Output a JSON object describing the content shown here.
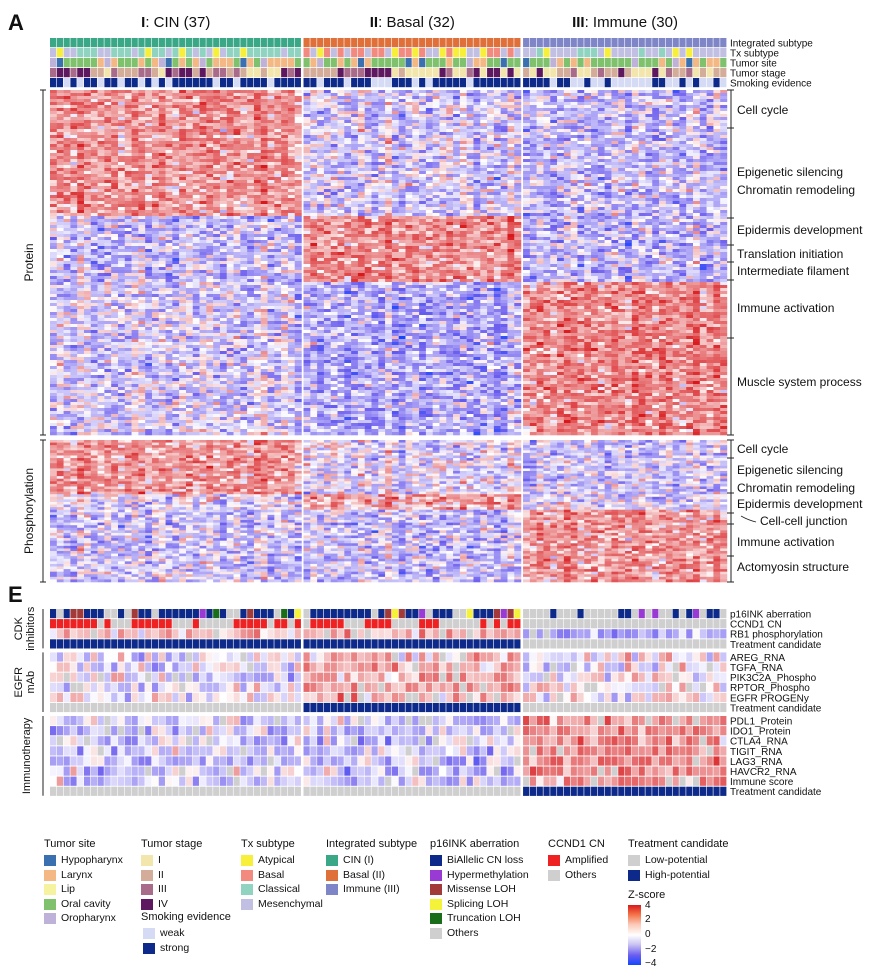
{
  "panel_a": {
    "panel_letter": "A",
    "groups": [
      {
        "roman": "I",
        "rest": ": CIN (37)",
        "n": 37,
        "color": "#3aa886"
      },
      {
        "roman": "II",
        "rest": ": Basal (32)",
        "n": 32,
        "color": "#e0703a"
      },
      {
        "roman": "III",
        "rest": ": Immune (30)",
        "n": 30,
        "color": "#7f86c8"
      }
    ],
    "annotation_rows": [
      "Integrated subtype",
      "Tx subtype",
      "Tumor site",
      "Tumor stage",
      "Smoking evidence"
    ],
    "blocks": [
      {
        "label": "Protein",
        "modules": [
          "Cell cycle",
          "Epigenetic silencing\nChromatin remodeling",
          "Epidermis development",
          "Translation initiation",
          "Intermediate filament",
          "Immune activation",
          "Muscle system process"
        ]
      },
      {
        "label": "Phosphorylation",
        "modules": [
          "Cell cycle",
          "Epigenetic silencing\nChromatin remodeling",
          "Epidermis development",
          "Cell-cell junction",
          "Immune activation",
          "Actomyosin structure"
        ]
      }
    ]
  },
  "panel_e": {
    "panel_letter": "E",
    "sections": [
      {
        "label": "CDK\ninhibitors",
        "rows": [
          "p16INK aberration",
          "CCND1 CN",
          "RB1 phosphorylation",
          "Treatment candidate"
        ]
      },
      {
        "label": "EGFR\nmAb",
        "rows": [
          "AREG_RNA",
          "TGFA_RNA",
          "PIK3C2A_Phospho",
          "RPTOR_Phospho",
          "EGFR PROGENy",
          "Treatment candidate"
        ]
      },
      {
        "label": "Immunotherapy",
        "rows": [
          "PDL1_Protein",
          "IDO1_Protein",
          "CTLA4_RNA",
          "TIGIT_RNA",
          "LAG3_RNA",
          "HAVCR2_RNA",
          "Immune score",
          "Treatment candidate"
        ]
      }
    ]
  },
  "legends": {
    "tumor_site": {
      "title": "Tumor site",
      "items": [
        {
          "label": "Hypopharynx",
          "color": "#3a6fb0"
        },
        {
          "label": "Larynx",
          "color": "#f3b883"
        },
        {
          "label": "Lip",
          "color": "#f5f2a0"
        },
        {
          "label": "Oral cavity",
          "color": "#7fc16c"
        },
        {
          "label": "Oropharynx",
          "color": "#bfb2d8"
        }
      ]
    },
    "tumor_stage": {
      "title": "Tumor stage",
      "items": [
        {
          "label": "I",
          "color": "#f3e6ad"
        },
        {
          "label": "II",
          "color": "#d4ad9a"
        },
        {
          "label": "III",
          "color": "#a86b8a"
        },
        {
          "label": "IV",
          "color": "#5e1860"
        }
      ]
    },
    "smoking": {
      "title": "Smoking evidence",
      "items": [
        {
          "label": "weak",
          "color": "#d6dbf5"
        },
        {
          "label": "strong",
          "color": "#0d2a8a"
        }
      ]
    },
    "tx_subtype": {
      "title": "Tx subtype",
      "items": [
        {
          "label": "Atypical",
          "color": "#f7ef3a"
        },
        {
          "label": "Basal",
          "color": "#f28a80"
        },
        {
          "label": "Classical",
          "color": "#8fd3c0"
        },
        {
          "label": "Mesenchymal",
          "color": "#c2c0e2"
        }
      ]
    },
    "integrated_subtype": {
      "title": "Integrated subtype",
      "items": [
        {
          "label": "CIN (I)",
          "color": "#3aa886"
        },
        {
          "label": "Basal (II)",
          "color": "#e0703a"
        },
        {
          "label": "Immune (III)",
          "color": "#7f86c8"
        }
      ]
    },
    "p16ink": {
      "title": "p16INK aberration",
      "items": [
        {
          "label": "BiAllelic CN loss",
          "color": "#0d2a8a"
        },
        {
          "label": "Hypermethylation",
          "color": "#9a3ad4"
        },
        {
          "label": "Missense LOH",
          "color": "#a33a3a"
        },
        {
          "label": "Splicing LOH",
          "color": "#f5f23a"
        },
        {
          "label": "Truncation LOH",
          "color": "#1a6e1a"
        },
        {
          "label": "Others",
          "color": "#cfcfcf"
        }
      ]
    },
    "ccnd1": {
      "title": "CCND1 CN",
      "items": [
        {
          "label": "Amplified",
          "color": "#ee2222"
        },
        {
          "label": "Others",
          "color": "#cfcfcf"
        }
      ]
    },
    "treatment": {
      "title": "Treatment candidate",
      "items": [
        {
          "label": "Low-potential",
          "color": "#cfcfcf"
        },
        {
          "label": "High-potential",
          "color": "#0d2a8a"
        }
      ]
    },
    "zscore": {
      "title": "Z-score",
      "ticks": [
        "4",
        "2",
        "0",
        "−2",
        "−4"
      ]
    }
  },
  "chart_data": {
    "type": "heatmap",
    "samples_per_group": [
      37,
      32,
      30
    ],
    "color_scale": {
      "title": "Z-score",
      "range": [
        -4,
        4
      ],
      "colors": [
        "#1247ff",
        "#ffffff",
        "#d7191c"
      ]
    }
  }
}
